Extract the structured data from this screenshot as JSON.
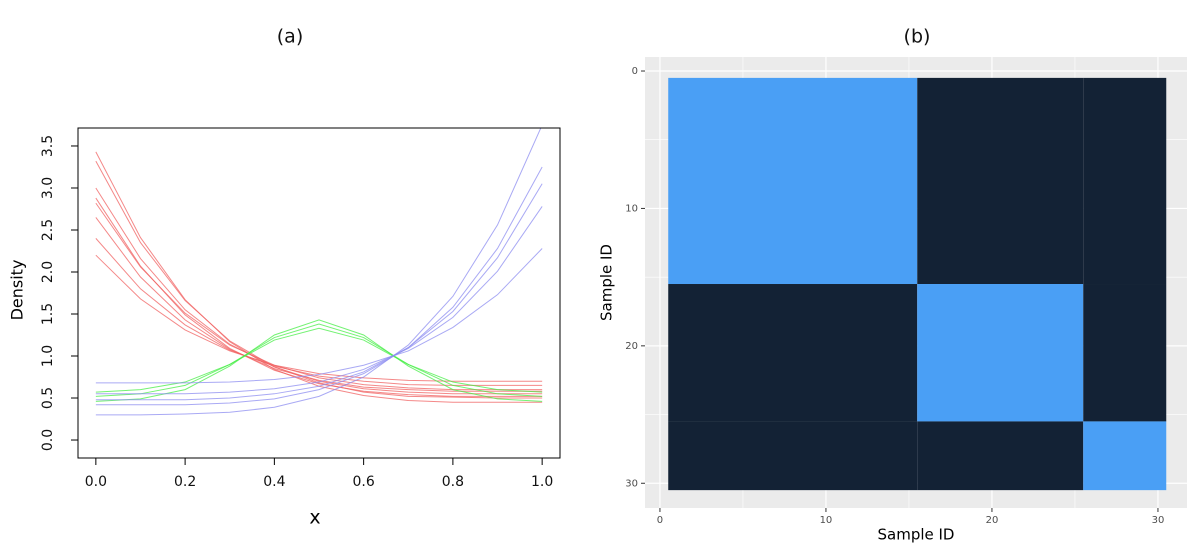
{
  "chart_data": [
    {
      "type": "line",
      "title": "(a)",
      "x_label": "x",
      "y_label": "Density",
      "x": [
        0,
        0.1,
        0.2,
        0.3,
        0.4,
        0.5,
        0.6,
        0.7,
        0.8,
        0.9,
        1
      ],
      "series": [
        {
          "color": "#f06060",
          "values": [
            3.43,
            2.41,
            1.67,
            1.17,
            0.84,
            0.64,
            0.53,
            0.47,
            0.45,
            0.45,
            0.45
          ]
        },
        {
          "color": "#f06060",
          "values": [
            3.32,
            2.35,
            1.66,
            1.18,
            0.87,
            0.68,
            0.57,
            0.52,
            0.51,
            0.5,
            0.5
          ]
        },
        {
          "color": "#f06060",
          "values": [
            3.0,
            2.16,
            1.55,
            1.14,
            0.87,
            0.7,
            0.61,
            0.57,
            0.55,
            0.55,
            0.55
          ]
        },
        {
          "color": "#f06060",
          "values": [
            2.82,
            2.06,
            1.51,
            1.13,
            0.89,
            0.74,
            0.66,
            0.62,
            0.6,
            0.6,
            0.6
          ]
        },
        {
          "color": "#f06060",
          "values": [
            2.65,
            1.94,
            1.43,
            1.08,
            0.85,
            0.71,
            0.63,
            0.6,
            0.58,
            0.58,
            0.58
          ]
        },
        {
          "color": "#f06060",
          "values": [
            2.4,
            1.8,
            1.37,
            1.07,
            0.88,
            0.76,
            0.7,
            0.66,
            0.65,
            0.65,
            0.65
          ]
        },
        {
          "color": "#f06060",
          "values": [
            2.2,
            1.68,
            1.31,
            1.06,
            0.89,
            0.79,
            0.74,
            0.71,
            0.7,
            0.7,
            0.7
          ]
        },
        {
          "color": "#f06060",
          "values": [
            2.88,
            2.07,
            1.49,
            1.09,
            0.83,
            0.67,
            0.58,
            0.54,
            0.52,
            0.52,
            0.52
          ]
        },
        {
          "color": "#44ee44",
          "values": [
            0.46,
            0.49,
            0.6,
            0.88,
            1.25,
            1.43,
            1.25,
            0.88,
            0.6,
            0.49,
            0.46
          ]
        },
        {
          "color": "#44ee44",
          "values": [
            0.52,
            0.55,
            0.65,
            0.9,
            1.22,
            1.38,
            1.22,
            0.9,
            0.65,
            0.55,
            0.52
          ]
        },
        {
          "color": "#44ee44",
          "values": [
            0.57,
            0.6,
            0.69,
            0.9,
            1.19,
            1.33,
            1.19,
            0.9,
            0.69,
            0.6,
            0.57
          ]
        },
        {
          "color": "#8c8cf0",
          "values": [
            0.3,
            0.3,
            0.31,
            0.33,
            0.39,
            0.52,
            0.75,
            1.13,
            1.71,
            2.56,
            3.75
          ]
        },
        {
          "color": "#8c8cf0",
          "values": [
            0.42,
            0.42,
            0.42,
            0.44,
            0.49,
            0.6,
            0.79,
            1.1,
            1.58,
            2.28,
            3.25
          ]
        },
        {
          "color": "#8c8cf0",
          "values": [
            0.48,
            0.48,
            0.48,
            0.5,
            0.55,
            0.64,
            0.81,
            1.1,
            1.53,
            2.17,
            3.05
          ]
        },
        {
          "color": "#8c8cf0",
          "values": [
            0.55,
            0.55,
            0.55,
            0.57,
            0.61,
            0.69,
            0.84,
            1.09,
            1.46,
            2.01,
            2.78
          ]
        },
        {
          "color": "#8c8cf0",
          "values": [
            0.68,
            0.68,
            0.68,
            0.69,
            0.72,
            0.78,
            0.89,
            1.06,
            1.34,
            1.73,
            2.28
          ]
        }
      ],
      "xlim": [
        -0.04,
        1.04
      ],
      "xticks": [
        {
          "value": 0,
          "label": "0.0"
        },
        0.2,
        0.4,
        0.6,
        0.8,
        {
          "value": 1,
          "label": "1.0"
        }
      ],
      "ylim": [
        -0.214,
        3.714
      ],
      "yticks": [
        {
          "value": 0,
          "label": "0.0"
        },
        0.5,
        {
          "value": 1,
          "label": "1.0"
        },
        1.5,
        {
          "value": 2,
          "label": "2.0"
        },
        2.5,
        {
          "value": 3,
          "label": "3.0"
        },
        3.5
      ],
      "grid": false
    },
    {
      "type": "heatmap",
      "title": "(b)",
      "x_label": "Sample ID",
      "y_label": "Sample ID",
      "color_low": "#132235",
      "color_high": "#4a9ff5",
      "tiles": [
        {
          "x": [
            0.5,
            15.5
          ],
          "y": [
            0.5,
            15.5
          ],
          "value": 1
        },
        {
          "x": [
            15.5,
            25.5
          ],
          "y": [
            0.5,
            15.5
          ],
          "value": 0
        },
        {
          "x": [
            25.5,
            30.5
          ],
          "y": [
            0.5,
            15.5
          ],
          "value": 0
        },
        {
          "x": [
            0.5,
            15.5
          ],
          "y": [
            15.5,
            25.5
          ],
          "value": 0
        },
        {
          "x": [
            15.5,
            25.5
          ],
          "y": [
            15.5,
            25.5
          ],
          "value": 1
        },
        {
          "x": [
            25.5,
            30.5
          ],
          "y": [
            15.5,
            25.5
          ],
          "value": 0
        },
        {
          "x": [
            0.5,
            15.5
          ],
          "y": [
            25.5,
            30.5
          ],
          "value": 0
        },
        {
          "x": [
            15.5,
            25.5
          ],
          "y": [
            25.5,
            30.5
          ],
          "value": 0
        },
        {
          "x": [
            25.5,
            30.5
          ],
          "y": [
            25.5,
            30.5
          ],
          "value": 1
        }
      ],
      "xlim": [
        -0.9,
        31.75
      ],
      "xticks": [
        0,
        10,
        20,
        30
      ],
      "x_minor_ticks": [
        5,
        15,
        25
      ],
      "ylim": [
        31.8,
        -1.02
      ],
      "yticks": [
        0,
        10,
        20,
        30
      ],
      "y_minor_ticks": [
        5,
        15,
        25
      ],
      "grid": true
    }
  ]
}
